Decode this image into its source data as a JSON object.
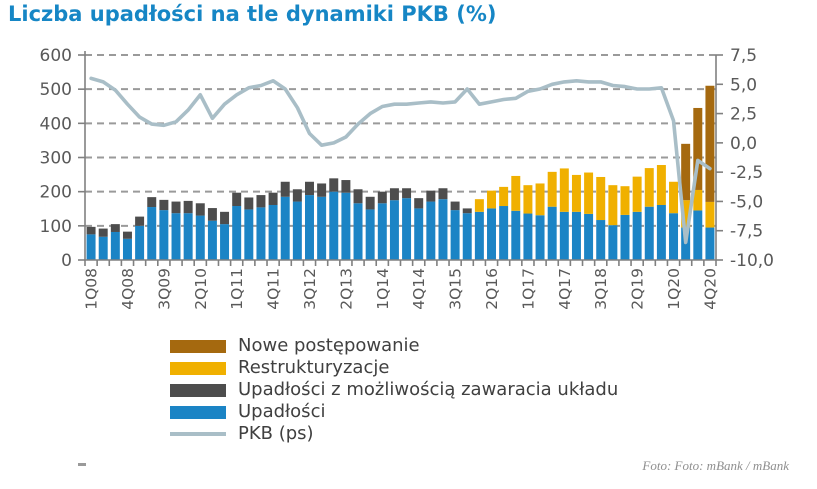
{
  "page": {
    "title": "Liczba upadłości na tle dynamiki PKB (%)",
    "title_color": "#1686c5",
    "footer_credit": "Foto: Foto: mBank / mBank"
  },
  "legend_items": [
    {
      "label": "Nowe postępowanie",
      "color": "#a5690f",
      "swatch": "bar"
    },
    {
      "label": "Restrukturyzacje",
      "color": "#f0b000",
      "swatch": "bar"
    },
    {
      "label": "Upadłości z możliwością zawaracia układu",
      "color": "#4d4d4d",
      "swatch": "bar"
    },
    {
      "label": "Upadłości",
      "color": "#1b84c5",
      "swatch": "bar"
    },
    {
      "label": "PKB (ps)",
      "color": "#a9bec7",
      "swatch": "line"
    }
  ],
  "chart_data": {
    "type": "bar",
    "subtype": "stacked-bars-with-line",
    "title": "Liczba upadłości na tle dynamiki PKB (%)",
    "grid": "dashed horizontal",
    "legend_position": "bottom-left",
    "categories": [
      "1Q08",
      "2Q08",
      "3Q08",
      "4Q08",
      "1Q09",
      "2Q09",
      "3Q09",
      "4Q09",
      "1Q10",
      "2Q10",
      "3Q10",
      "4Q10",
      "1Q11",
      "2Q11",
      "3Q11",
      "4Q11",
      "1Q12",
      "2Q12",
      "3Q12",
      "4Q12",
      "1Q13",
      "2Q13",
      "3Q13",
      "4Q13",
      "1Q14",
      "2Q14",
      "3Q14",
      "4Q14",
      "1Q15",
      "2Q15",
      "3Q15",
      "4Q15",
      "1Q16",
      "2Q16",
      "3Q16",
      "4Q16",
      "1Q17",
      "2Q17",
      "3Q17",
      "4Q17",
      "1Q18",
      "2Q18",
      "3Q18",
      "4Q18",
      "1Q19",
      "2Q19",
      "3Q19",
      "4Q19",
      "1Q20",
      "2Q20",
      "3Q20",
      "4Q20"
    ],
    "x_tick_labels": [
      "1Q08",
      "4Q08",
      "3Q09",
      "2Q10",
      "1Q11",
      "4Q11",
      "3Q12",
      "2Q13",
      "1Q14",
      "4Q14",
      "3Q15",
      "2Q16",
      "1Q17",
      "4Q17",
      "3Q18",
      "2Q19",
      "1Q20",
      "4Q20"
    ],
    "x_tick_step": 3,
    "left_axis": {
      "min": 0,
      "max": 600,
      "step": 100,
      "tick_values": [
        0,
        100,
        200,
        300,
        400,
        500,
        600
      ],
      "tick_labels": [
        "0",
        "100",
        "200",
        "300",
        "400",
        "500",
        "600"
      ]
    },
    "right_axis": {
      "min": -10,
      "max": 7.5,
      "step": 2.5,
      "tick_values": [
        -10,
        -7.5,
        -5,
        -2.5,
        0,
        2.5,
        5,
        7.5
      ],
      "tick_labels": [
        "-10,0",
        "-7,5",
        "-5,0",
        "-2,5",
        "0,0",
        "2,5",
        "5,0",
        "7,5"
      ]
    },
    "series": [
      {
        "name": "Upadłości",
        "type": "bar",
        "axis": "left",
        "color": "#1b84c5",
        "values": [
          75,
          68,
          82,
          62,
          100,
          155,
          146,
          137,
          137,
          130,
          115,
          105,
          158,
          148,
          154,
          161,
          185,
          171,
          190,
          185,
          200,
          197,
          166,
          148,
          166,
          175,
          181,
          151,
          171,
          178,
          146,
          137,
          141,
          151,
          158,
          144,
          136,
          131,
          156,
          141,
          141,
          135,
          117,
          102,
          132,
          141,
          156,
          161,
          137,
          95,
          145,
          95
        ]
      },
      {
        "name": "Upadłości z możliwością zawaracia układu",
        "type": "bar",
        "axis": "left",
        "color": "#4d4d4d",
        "values": [
          22,
          24,
          23,
          21,
          27,
          29,
          30,
          34,
          36,
          36,
          37,
          36,
          39,
          35,
          36,
          36,
          44,
          36,
          39,
          39,
          39,
          37,
          41,
          37,
          34,
          35,
          29,
          30,
          32,
          32,
          25,
          14,
          0,
          0,
          0,
          0,
          0,
          0,
          0,
          0,
          0,
          0,
          0,
          0,
          0,
          0,
          0,
          0,
          0,
          0,
          0,
          0
        ]
      },
      {
        "name": "Restrukturyzacje",
        "type": "bar",
        "axis": "left",
        "color": "#f0b000",
        "values": [
          0,
          0,
          0,
          0,
          0,
          0,
          0,
          0,
          0,
          0,
          0,
          0,
          0,
          0,
          0,
          0,
          0,
          0,
          0,
          0,
          0,
          0,
          0,
          0,
          0,
          0,
          0,
          0,
          0,
          0,
          0,
          0,
          37,
          52,
          56,
          102,
          83,
          93,
          102,
          127,
          108,
          121,
          126,
          117,
          84,
          103,
          113,
          117,
          92,
          80,
          60,
          75
        ]
      },
      {
        "name": "Nowe postępowanie",
        "type": "bar",
        "axis": "left",
        "color": "#a5690f",
        "values": [
          0,
          0,
          0,
          0,
          0,
          0,
          0,
          0,
          0,
          0,
          0,
          0,
          0,
          0,
          0,
          0,
          0,
          0,
          0,
          0,
          0,
          0,
          0,
          0,
          0,
          0,
          0,
          0,
          0,
          0,
          0,
          0,
          0,
          0,
          0,
          0,
          0,
          0,
          0,
          0,
          0,
          0,
          0,
          0,
          0,
          0,
          0,
          0,
          0,
          165,
          240,
          340
        ]
      },
      {
        "name": "PKB (ps)",
        "type": "line",
        "axis": "right",
        "color": "#a9bec7",
        "values": [
          5.5,
          5.2,
          4.5,
          3.3,
          2.2,
          1.6,
          1.5,
          1.8,
          2.8,
          4.1,
          2.1,
          3.3,
          4.1,
          4.7,
          4.9,
          5.3,
          4.6,
          3.0,
          0.8,
          -0.2,
          0.0,
          0.5,
          1.6,
          2.5,
          3.1,
          3.3,
          3.3,
          3.4,
          3.5,
          3.4,
          3.5,
          4.6,
          3.3,
          3.5,
          3.7,
          3.8,
          4.4,
          4.6,
          5.0,
          5.2,
          5.3,
          5.2,
          5.2,
          4.9,
          4.8,
          4.6,
          4.6,
          4.7,
          1.9,
          -8.5,
          -1.5,
          -2.2
        ]
      }
    ],
    "styles": {
      "axis_text_color": "#595959",
      "axis_line_color": "#808080",
      "grid_color": "#9a9a9a",
      "background": "#ffffff"
    }
  }
}
